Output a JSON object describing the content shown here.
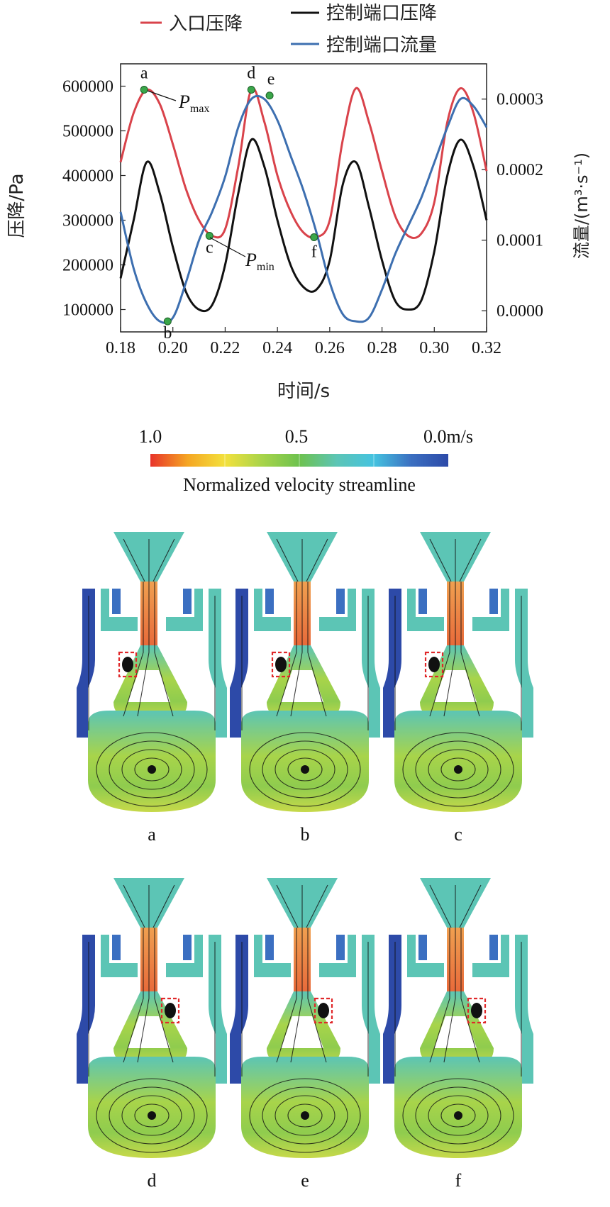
{
  "chart_data": {
    "type": "line",
    "xlabel": "时间/s",
    "ylabel_left": "压降/Pa",
    "ylabel_right": "流量/(m³·s⁻¹)",
    "xlim": [
      0.18,
      0.32
    ],
    "ylim_left": [
      50000,
      650000
    ],
    "ylim_right": [
      -3e-05,
      0.00035
    ],
    "xticks": [
      "0.18",
      "0.20",
      "0.22",
      "0.24",
      "0.26",
      "0.28",
      "0.30",
      "0.32"
    ],
    "yticks_left": [
      "100000",
      "200000",
      "300000",
      "400000",
      "500000",
      "600000"
    ],
    "yticks_right": [
      "0.0000",
      "0.0001",
      "0.0002",
      "0.0003"
    ],
    "legend": [
      "入口压降",
      "控制端口压降",
      "控制端口流量"
    ],
    "series": [
      {
        "name": "入口压降",
        "axis": "left",
        "color": "#d9434b",
        "x": [
          0.18,
          0.185,
          0.19,
          0.195,
          0.2,
          0.205,
          0.21,
          0.215,
          0.22,
          0.225,
          0.23,
          0.235,
          0.24,
          0.245,
          0.25,
          0.255,
          0.26,
          0.265,
          0.27,
          0.275,
          0.28,
          0.285,
          0.29,
          0.295,
          0.3,
          0.305,
          0.31,
          0.315,
          0.32
        ],
        "values": [
          430000,
          540000,
          592000,
          560000,
          470000,
          370000,
          300000,
          265000,
          280000,
          420000,
          592000,
          520000,
          400000,
          320000,
          272000,
          262000,
          300000,
          480000,
          595000,
          520000,
          410000,
          310000,
          265000,
          270000,
          340000,
          520000,
          595000,
          540000,
          410000
        ]
      },
      {
        "name": "控制端口压降",
        "axis": "left",
        "color": "#111111",
        "x": [
          0.18,
          0.185,
          0.19,
          0.195,
          0.2,
          0.205,
          0.21,
          0.215,
          0.22,
          0.225,
          0.23,
          0.235,
          0.24,
          0.245,
          0.25,
          0.255,
          0.26,
          0.265,
          0.27,
          0.275,
          0.28,
          0.285,
          0.29,
          0.295,
          0.3,
          0.305,
          0.31,
          0.315,
          0.32
        ],
        "values": [
          170000,
          300000,
          430000,
          360000,
          240000,
          140000,
          100000,
          110000,
          200000,
          360000,
          480000,
          420000,
          300000,
          200000,
          150000,
          145000,
          210000,
          380000,
          430000,
          330000,
          210000,
          120000,
          100000,
          120000,
          230000,
          400000,
          480000,
          420000,
          300000
        ]
      },
      {
        "name": "控制端口流量",
        "axis": "right",
        "color": "#3d6fb0",
        "x": [
          0.18,
          0.185,
          0.19,
          0.195,
          0.2,
          0.205,
          0.21,
          0.215,
          0.22,
          0.225,
          0.23,
          0.235,
          0.24,
          0.245,
          0.25,
          0.255,
          0.26,
          0.265,
          0.27,
          0.275,
          0.28,
          0.285,
          0.29,
          0.295,
          0.3,
          0.305,
          0.31,
          0.315,
          0.32
        ],
        "values": [
          0.00014,
          6e-05,
          1e-05,
          -1.5e-05,
          -1e-05,
          4e-05,
          0.0001,
          0.00014,
          0.00019,
          0.00026,
          0.0003,
          0.0003,
          0.00027,
          0.00022,
          0.00017,
          0.00011,
          4e-05,
          -5e-06,
          -1.5e-05,
          -1e-05,
          3e-05,
          8e-05,
          0.00012,
          0.00016,
          0.00021,
          0.00026,
          0.0003,
          0.00029,
          0.00026
        ]
      }
    ],
    "annotations": [
      {
        "label": "a",
        "x": 0.189,
        "y": 592000,
        "axis": "left"
      },
      {
        "label": "b",
        "x": 0.198,
        "y": -1.5e-05,
        "axis": "right"
      },
      {
        "label": "c",
        "x": 0.214,
        "y": 265000,
        "axis": "left"
      },
      {
        "label": "d",
        "x": 0.23,
        "y": 592000,
        "axis": "left"
      },
      {
        "label": "e",
        "x": 0.237,
        "y": 0.000305,
        "axis": "right"
      },
      {
        "label": "f",
        "x": 0.254,
        "y": 262000,
        "axis": "left"
      }
    ],
    "pmax": {
      "base": "P",
      "sub": "max"
    },
    "pmin": {
      "base": "P",
      "sub": "min"
    }
  },
  "colorbar": {
    "title": "Normalized velocity streamline",
    "tick_left": "1.0",
    "tick_mid": "0.5",
    "tick_right": "0.0m/s",
    "colors": [
      "#e8332a",
      "#f5a623",
      "#f3e13d",
      "#a8d44a",
      "#6dc24e",
      "#5cc5b5",
      "#45c3e0",
      "#3b6fc1",
      "#2d4aa8"
    ]
  },
  "panels": [
    "a",
    "b",
    "c",
    "d",
    "e",
    "f"
  ]
}
